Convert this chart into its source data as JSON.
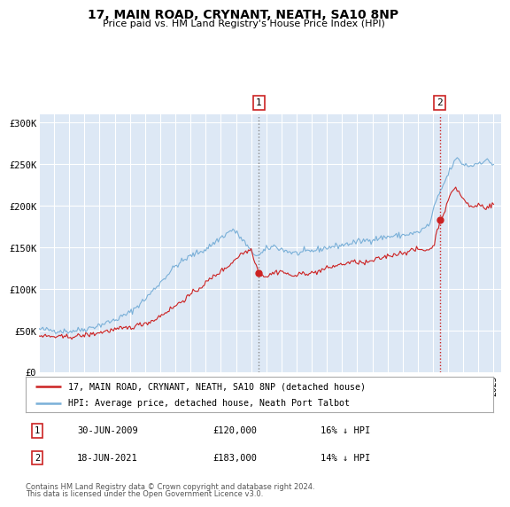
{
  "title": "17, MAIN ROAD, CRYNANT, NEATH, SA10 8NP",
  "subtitle": "Price paid vs. HM Land Registry's House Price Index (HPI)",
  "ylabel_ticks": [
    "£0",
    "£50K",
    "£100K",
    "£150K",
    "£200K",
    "£250K",
    "£300K"
  ],
  "ytick_values": [
    0,
    50000,
    100000,
    150000,
    200000,
    250000,
    300000
  ],
  "ylim": [
    0,
    310000
  ],
  "xlim_start": 1995.0,
  "xlim_end": 2025.5,
  "plot_bg_color": "#dde8f5",
  "fig_bg_color": "#ffffff",
  "grid_color": "#ffffff",
  "hpi_color": "#7ab0d8",
  "price_color": "#cc2222",
  "marker1_date": 2009.5,
  "marker1_price": 120000,
  "marker1_label": "30-JUN-2009",
  "marker1_value": "£120,000",
  "marker1_note": "16% ↓ HPI",
  "marker2_date": 2021.46,
  "marker2_price": 183000,
  "marker2_label": "18-JUN-2021",
  "marker2_value": "£183,000",
  "marker2_note": "14% ↓ HPI",
  "legend_line1": "17, MAIN ROAD, CRYNANT, NEATH, SA10 8NP (detached house)",
  "legend_line2": "HPI: Average price, detached house, Neath Port Talbot",
  "footer1": "Contains HM Land Registry data © Crown copyright and database right 2024.",
  "footer2": "This data is licensed under the Open Government Licence v3.0."
}
